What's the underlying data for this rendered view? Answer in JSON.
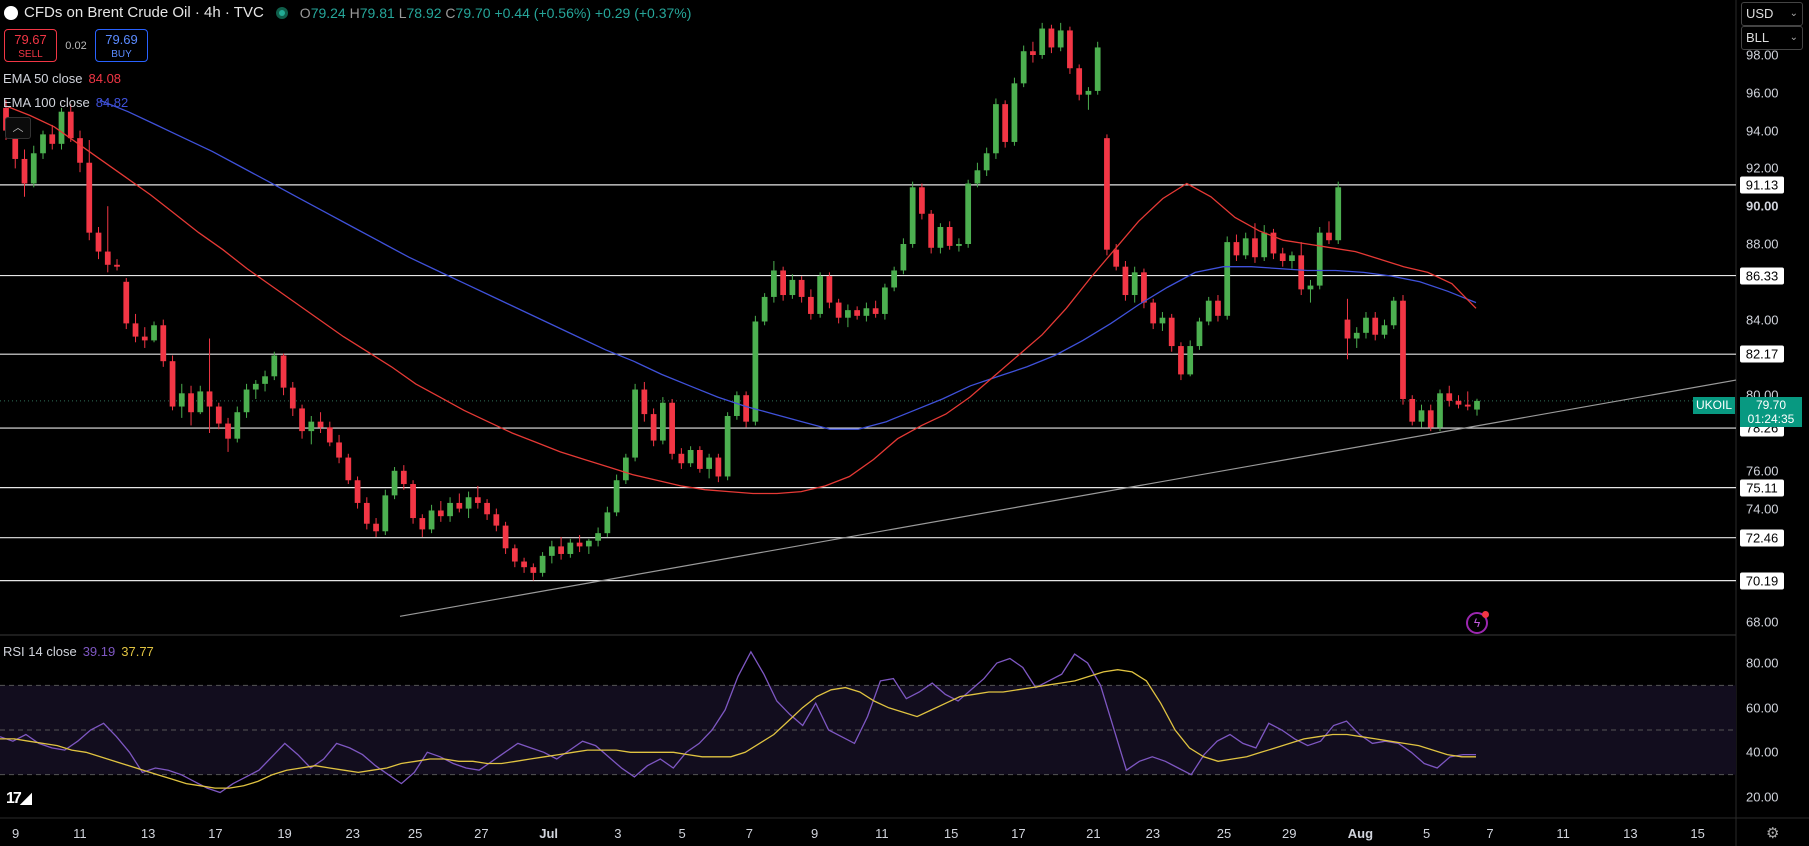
{
  "header": {
    "title": "CFDs on Brent Crude Oil · 4h · TVC",
    "open_label": "O",
    "open": "79.24",
    "high_label": "H",
    "high": "79.81",
    "low_label": "L",
    "low": "78.92",
    "close_label": "C",
    "close": "79.70",
    "change": "+0.44 (+0.56%)",
    "change2": "+0.29 (+0.37%)"
  },
  "trade": {
    "sell_price": "79.67",
    "sell_label": "SELL",
    "spread": "0.02",
    "buy_price": "79.69",
    "buy_label": "BUY"
  },
  "indicators": {
    "ema50_label": "EMA 50 close",
    "ema50_value": "84.08",
    "ema100_label": "EMA 100 close",
    "ema100_value": "84.82",
    "rsi_label": "RSI 14 close",
    "rsi_value": "39.19",
    "rsi_ma_value": "37.77"
  },
  "scale": {
    "currency": "USD",
    "unit": "BLL"
  },
  "price_axis": [
    "98.00",
    "96.00",
    "94.00",
    "92.00",
    "90.00",
    "88.00",
    "84.00",
    "80.00",
    "76.00",
    "74.00",
    "68.00"
  ],
  "level_tags": [
    "91.13",
    "86.33",
    "82.17",
    "78.26",
    "75.11",
    "72.46",
    "70.19"
  ],
  "last_price": {
    "symbol": "UKOIL",
    "price": "79.70",
    "countdown": "01:24:35"
  },
  "rsi_axis": [
    "80.00",
    "60.00",
    "40.00",
    "20.00"
  ],
  "time_axis": [
    "9",
    "11",
    "13",
    "17",
    "19",
    "23",
    "25",
    "27",
    "Jul",
    "3",
    "5",
    "7",
    "9",
    "11",
    "15",
    "17",
    "21",
    "23",
    "25",
    "29",
    "Aug",
    "5",
    "7",
    "11",
    "13",
    "15"
  ],
  "colors": {
    "up": "#4caf50",
    "down": "#f23645",
    "ema50": "#e53935",
    "ema100": "#3f51d9",
    "rsi": "#7e57c2",
    "rsi_ma": "#e0c341"
  },
  "chart_data": {
    "type": "candlestick",
    "symbol": "UKOIL",
    "interval": "4h",
    "ylim": [
      67,
      100
    ],
    "ohlc": [
      [
        95.2,
        95.6,
        93.5,
        94.0
      ],
      [
        94.0,
        94.4,
        92.0,
        92.5
      ],
      [
        92.5,
        93.0,
        90.5,
        91.2
      ],
      [
        91.2,
        93.2,
        91.0,
        92.8
      ],
      [
        92.8,
        94.0,
        92.5,
        93.8
      ],
      [
        93.8,
        94.3,
        93.0,
        93.3
      ],
      [
        93.3,
        95.2,
        93.0,
        95.0
      ],
      [
        95.0,
        95.4,
        93.4,
        93.6
      ],
      [
        93.6,
        94.0,
        91.8,
        92.3
      ],
      [
        92.3,
        93.5,
        88.2,
        88.6
      ],
      [
        88.6,
        88.9,
        87.2,
        87.6
      ],
      [
        87.6,
        90.0,
        86.5,
        86.9
      ],
      [
        86.9,
        87.2,
        86.6,
        86.8
      ],
      [
        86.0,
        86.2,
        83.5,
        83.8
      ],
      [
        83.8,
        84.3,
        82.8,
        83.1
      ],
      [
        83.1,
        83.6,
        82.5,
        82.9
      ],
      [
        82.9,
        83.9,
        82.8,
        83.7
      ],
      [
        83.7,
        84.0,
        81.5,
        81.8
      ],
      [
        81.8,
        82.1,
        79.2,
        79.4
      ],
      [
        79.4,
        80.6,
        78.8,
        80.1
      ],
      [
        80.1,
        80.5,
        78.4,
        79.1
      ],
      [
        79.1,
        80.5,
        79.0,
        80.2
      ],
      [
        80.2,
        83.0,
        78.0,
        79.4
      ],
      [
        79.4,
        79.6,
        78.2,
        78.5
      ],
      [
        78.5,
        78.8,
        77.0,
        77.7
      ],
      [
        77.7,
        79.4,
        77.5,
        79.1
      ],
      [
        79.1,
        80.6,
        78.8,
        80.3
      ],
      [
        80.3,
        80.8,
        79.8,
        80.6
      ],
      [
        80.6,
        81.3,
        80.2,
        81.0
      ],
      [
        81.0,
        82.3,
        80.8,
        82.1
      ],
      [
        82.1,
        82.2,
        80.0,
        80.4
      ],
      [
        80.4,
        80.7,
        78.9,
        79.3
      ],
      [
        79.3,
        79.5,
        77.7,
        78.1
      ],
      [
        78.1,
        78.9,
        77.4,
        78.6
      ],
      [
        78.6,
        79.1,
        78.0,
        78.3
      ],
      [
        78.3,
        78.6,
        77.3,
        77.5
      ],
      [
        77.5,
        77.9,
        76.4,
        76.7
      ],
      [
        76.7,
        76.9,
        75.3,
        75.5
      ],
      [
        75.5,
        75.7,
        74.0,
        74.3
      ],
      [
        74.3,
        74.6,
        72.9,
        73.2
      ],
      [
        73.2,
        73.5,
        72.5,
        72.8
      ],
      [
        72.8,
        75.0,
        72.6,
        74.7
      ],
      [
        74.7,
        76.2,
        74.5,
        76.0
      ],
      [
        76.0,
        76.3,
        75.0,
        75.3
      ],
      [
        75.3,
        75.5,
        73.2,
        73.5
      ],
      [
        73.5,
        73.7,
        72.5,
        72.9
      ],
      [
        72.9,
        74.2,
        72.7,
        73.9
      ],
      [
        73.9,
        74.4,
        73.3,
        73.6
      ],
      [
        73.6,
        74.6,
        73.3,
        74.3
      ],
      [
        74.3,
        74.8,
        73.8,
        74.0
      ],
      [
        74.0,
        74.9,
        73.5,
        74.6
      ],
      [
        74.6,
        75.2,
        74.0,
        74.3
      ],
      [
        74.3,
        74.5,
        73.4,
        73.7
      ],
      [
        73.7,
        74.0,
        72.8,
        73.1
      ],
      [
        73.1,
        73.3,
        71.6,
        71.9
      ],
      [
        71.9,
        72.1,
        70.9,
        71.2
      ],
      [
        71.2,
        71.4,
        70.6,
        70.9
      ],
      [
        70.9,
        71.1,
        70.2,
        70.6
      ],
      [
        70.6,
        71.7,
        70.4,
        71.5
      ],
      [
        71.5,
        72.3,
        71.1,
        72.0
      ],
      [
        72.0,
        72.5,
        71.3,
        71.6
      ],
      [
        71.6,
        72.4,
        71.4,
        72.2
      ],
      [
        72.2,
        72.6,
        71.7,
        72.0
      ],
      [
        72.0,
        72.4,
        71.6,
        72.3
      ],
      [
        72.3,
        73.0,
        72.0,
        72.7
      ],
      [
        72.7,
        74.1,
        72.5,
        73.8
      ],
      [
        73.8,
        75.8,
        73.6,
        75.5
      ],
      [
        75.5,
        76.9,
        75.3,
        76.7
      ],
      [
        76.7,
        80.6,
        76.5,
        80.3
      ],
      [
        80.3,
        80.7,
        78.6,
        79.0
      ],
      [
        79.0,
        79.3,
        77.3,
        77.6
      ],
      [
        77.6,
        79.9,
        77.4,
        79.6
      ],
      [
        79.6,
        79.8,
        76.6,
        76.9
      ],
      [
        76.9,
        77.2,
        76.1,
        76.4
      ],
      [
        76.4,
        77.3,
        76.2,
        77.1
      ],
      [
        77.1,
        77.3,
        75.9,
        76.1
      ],
      [
        76.1,
        76.9,
        75.6,
        76.7
      ],
      [
        76.7,
        76.9,
        75.4,
        75.7
      ],
      [
        75.7,
        79.1,
        75.5,
        78.9
      ],
      [
        78.9,
        80.2,
        78.7,
        80.0
      ],
      [
        80.0,
        80.2,
        78.3,
        78.6
      ],
      [
        78.6,
        84.2,
        78.4,
        83.9
      ],
      [
        83.9,
        85.4,
        83.7,
        85.2
      ],
      [
        85.2,
        87.1,
        84.9,
        86.6
      ],
      [
        86.6,
        86.8,
        85.0,
        85.3
      ],
      [
        85.3,
        86.4,
        85.1,
        86.1
      ],
      [
        86.1,
        86.3,
        84.9,
        85.2
      ],
      [
        85.2,
        85.6,
        84.0,
        84.3
      ],
      [
        84.3,
        86.5,
        84.1,
        86.3
      ],
      [
        86.3,
        86.5,
        84.6,
        84.9
      ],
      [
        84.9,
        85.1,
        83.8,
        84.1
      ],
      [
        84.1,
        84.8,
        83.6,
        84.5
      ],
      [
        84.5,
        84.7,
        84.0,
        84.2
      ],
      [
        84.2,
        84.9,
        83.9,
        84.6
      ],
      [
        84.6,
        85.0,
        84.1,
        84.3
      ],
      [
        84.3,
        85.9,
        84.0,
        85.7
      ],
      [
        85.7,
        86.8,
        85.5,
        86.6
      ],
      [
        86.6,
        88.3,
        86.4,
        88.0
      ],
      [
        88.0,
        91.3,
        87.8,
        91.0
      ],
      [
        91.0,
        91.2,
        89.3,
        89.6
      ],
      [
        89.6,
        89.8,
        87.5,
        87.8
      ],
      [
        87.8,
        89.1,
        87.5,
        88.9
      ],
      [
        88.9,
        89.2,
        87.7,
        87.9
      ],
      [
        87.9,
        88.3,
        87.6,
        88.0
      ],
      [
        88.0,
        91.4,
        87.8,
        91.2
      ],
      [
        91.2,
        92.3,
        91.0,
        91.9
      ],
      [
        91.9,
        93.1,
        91.6,
        92.8
      ],
      [
        92.8,
        95.7,
        92.5,
        95.4
      ],
      [
        95.4,
        95.6,
        93.1,
        93.4
      ],
      [
        93.4,
        96.8,
        93.2,
        96.5
      ],
      [
        96.5,
        98.5,
        96.3,
        98.2
      ],
      [
        98.2,
        98.7,
        97.6,
        98.0
      ],
      [
        98.0,
        99.7,
        97.8,
        99.4
      ],
      [
        99.4,
        99.6,
        98.1,
        98.4
      ],
      [
        98.4,
        99.7,
        98.2,
        99.3
      ],
      [
        99.3,
        99.5,
        97.0,
        97.3
      ],
      [
        97.3,
        97.5,
        95.6,
        95.9
      ],
      [
        95.9,
        96.3,
        95.1,
        96.1
      ],
      [
        96.1,
        98.7,
        95.9,
        98.4
      ],
      [
        93.6,
        93.8,
        87.4,
        87.7
      ],
      [
        87.7,
        88.0,
        86.6,
        86.8
      ],
      [
        86.8,
        87.1,
        85.0,
        85.3
      ],
      [
        85.3,
        86.8,
        84.9,
        86.5
      ],
      [
        86.5,
        86.7,
        84.6,
        84.9
      ],
      [
        84.9,
        85.1,
        83.5,
        83.8
      ],
      [
        83.8,
        84.4,
        83.4,
        84.1
      ],
      [
        84.1,
        84.3,
        82.3,
        82.6
      ],
      [
        82.6,
        82.8,
        80.8,
        81.1
      ],
      [
        81.1,
        82.9,
        81.0,
        82.6
      ],
      [
        82.6,
        84.1,
        82.4,
        83.9
      ],
      [
        83.9,
        85.2,
        83.7,
        85.0
      ],
      [
        85.0,
        85.3,
        83.9,
        84.2
      ],
      [
        84.2,
        88.4,
        84.0,
        88.1
      ],
      [
        88.1,
        88.5,
        87.1,
        87.4
      ],
      [
        87.4,
        88.6,
        87.2,
        88.3
      ],
      [
        88.3,
        89.1,
        87.0,
        87.3
      ],
      [
        87.3,
        89.0,
        87.1,
        88.6
      ],
      [
        88.6,
        88.8,
        87.2,
        87.5
      ],
      [
        87.5,
        87.8,
        86.8,
        87.1
      ],
      [
        87.1,
        87.6,
        86.7,
        87.4
      ],
      [
        87.4,
        88.1,
        85.3,
        85.6
      ],
      [
        85.6,
        86.1,
        84.9,
        85.8
      ],
      [
        85.8,
        88.9,
        85.6,
        88.6
      ],
      [
        88.6,
        89.2,
        88.0,
        88.2
      ],
      [
        88.2,
        91.3,
        88.0,
        91.0
      ],
      [
        84.0,
        85.1,
        81.9,
        83.0
      ],
      [
        83.0,
        83.6,
        82.5,
        83.3
      ],
      [
        83.3,
        84.4,
        83.0,
        84.1
      ],
      [
        84.1,
        84.4,
        82.9,
        83.2
      ],
      [
        83.2,
        84.0,
        83.0,
        83.7
      ],
      [
        83.7,
        85.2,
        83.5,
        85.0
      ],
      [
        85.0,
        85.3,
        79.5,
        79.8
      ],
      [
        79.8,
        80.0,
        78.4,
        78.6
      ],
      [
        78.6,
        79.5,
        78.3,
        79.2
      ],
      [
        79.2,
        79.5,
        78.1,
        78.3
      ],
      [
        78.3,
        80.3,
        78.1,
        80.1
      ],
      [
        80.1,
        80.5,
        79.4,
        79.7
      ],
      [
        79.7,
        80.0,
        79.3,
        79.5
      ],
      [
        79.5,
        80.2,
        79.2,
        79.4
      ],
      [
        79.24,
        79.81,
        78.92,
        79.7
      ]
    ],
    "ema50": [
      95.3,
      94.8,
      94.2,
      93.3,
      92.4,
      91.5,
      90.6,
      89.6,
      88.6,
      87.7,
      86.7,
      85.8,
      84.9,
      84.0,
      83.1,
      82.3,
      81.5,
      80.6,
      79.9,
      79.2,
      78.6,
      78.0,
      77.5,
      77.0,
      76.6,
      76.2,
      75.8,
      75.5,
      75.2,
      75.0,
      74.9,
      74.8,
      74.8,
      74.9,
      75.2,
      75.7,
      76.6,
      77.7,
      78.4,
      79.0,
      79.9,
      81.0,
      82.1,
      83.2,
      84.6,
      86.2,
      87.7,
      89.2,
      90.4,
      91.2,
      90.5,
      89.4,
      88.7,
      88.2,
      88.0,
      87.8,
      87.6,
      87.2,
      86.8,
      86.5,
      85.9,
      84.6
    ],
    "ema100": [
      95.6,
      95.0,
      94.3,
      93.6,
      92.9,
      92.1,
      91.3,
      90.5,
      89.7,
      88.9,
      88.1,
      87.3,
      86.6,
      85.9,
      85.2,
      84.5,
      83.8,
      83.1,
      82.4,
      81.8,
      81.1,
      80.5,
      79.9,
      79.4,
      79.0,
      78.6,
      78.2,
      78.2,
      78.6,
      79.2,
      79.8,
      80.5,
      81.0,
      81.5,
      82.1,
      82.9,
      83.8,
      84.8,
      85.7,
      86.5,
      86.8,
      86.8,
      86.7,
      86.6,
      86.6,
      86.5,
      86.3,
      86.0,
      85.5,
      84.9
    ],
    "horizontal_levels": [
      91.13,
      86.33,
      82.17,
      78.26,
      75.11,
      72.46,
      70.19
    ],
    "trendline": {
      "from": {
        "x": "Jun 24",
        "y": 68.3
      },
      "to": {
        "x": "Aug 8",
        "y": 80.8
      }
    },
    "rsi": [
      47,
      45,
      48,
      44,
      42,
      41,
      45,
      50,
      53,
      47,
      40,
      31,
      33,
      32,
      30,
      27,
      24,
      22,
      26,
      29,
      32,
      38,
      44,
      39,
      33,
      37,
      44,
      42,
      39,
      34,
      30,
      26,
      31,
      40,
      38,
      35,
      33,
      32,
      36,
      40,
      44,
      42,
      40,
      37,
      41,
      45,
      43,
      38,
      33,
      29,
      34,
      37,
      33,
      40,
      44,
      50,
      59,
      74,
      85,
      75,
      63,
      57,
      52,
      62,
      50,
      47,
      44,
      56,
      72,
      73,
      64,
      67,
      71,
      66,
      63,
      68,
      73,
      80,
      82,
      78,
      69,
      72,
      75,
      84,
      80,
      70,
      51,
      32,
      36,
      38,
      36,
      33,
      30,
      39,
      45,
      48,
      44,
      42,
      53,
      50,
      46,
      43,
      45,
      52,
      54,
      48,
      44,
      45,
      44,
      40,
      35,
      33,
      38,
      39,
      39
    ],
    "rsi_ma": [
      46,
      46,
      45,
      44,
      43,
      41,
      40,
      38,
      36,
      34,
      32,
      30,
      28,
      26,
      25,
      24,
      24,
      25,
      27,
      30,
      32,
      33,
      34,
      33,
      32,
      31,
      32,
      33,
      35,
      36,
      37,
      37,
      36,
      36,
      35,
      35,
      36,
      37,
      38,
      39,
      40,
      41,
      41,
      41,
      40,
      40,
      40,
      40,
      39,
      38,
      38,
      38,
      40,
      44,
      48,
      54,
      60,
      65,
      68,
      69,
      67,
      63,
      60,
      58,
      56,
      59,
      62,
      65,
      66,
      67,
      67,
      68,
      69,
      70,
      71,
      72,
      74,
      76,
      77,
      76,
      72,
      62,
      50,
      42,
      38,
      36,
      37,
      38,
      40,
      42,
      44,
      46,
      47,
      48,
      48,
      47,
      46,
      45,
      44,
      43,
      41,
      39,
      38,
      38
    ],
    "rsi_ylim": [
      10,
      90
    ],
    "rsi_bands": [
      70,
      50,
      30
    ]
  }
}
